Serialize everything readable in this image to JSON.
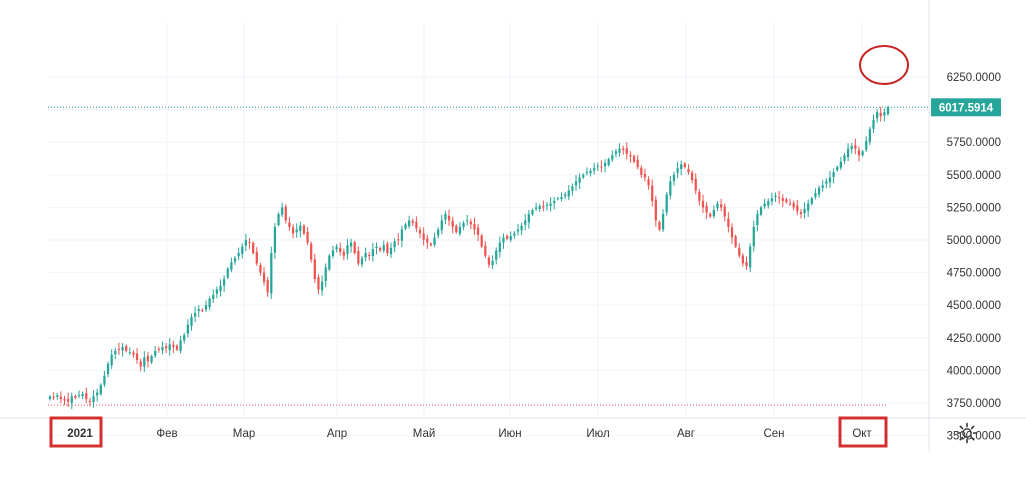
{
  "chart_data": {
    "type": "candlestick",
    "x_labels": [
      "2021",
      "Фев",
      "Мар",
      "Апр",
      "Май",
      "Июн",
      "Июл",
      "Авг",
      "Сен",
      "Окт"
    ],
    "y_ticks": [
      "6250.0000",
      "6000.0000",
      "5750.0000",
      "5500.0000",
      "5250.0000",
      "5000.0000",
      "4750.0000",
      "4500.0000",
      "4250.0000",
      "4000.0000",
      "3750.0000",
      "3500.0000"
    ],
    "ylim": [
      3400,
      6350
    ],
    "last_price_label": "6017.5914",
    "last_price": 6017.5914,
    "start_price_line": 3735,
    "closes": [
      3800,
      3790,
      3810,
      3780,
      3770,
      3760,
      3800,
      3790,
      3810,
      3820,
      3780,
      3760,
      3800,
      3830,
      3890,
      3960,
      4050,
      4120,
      4150,
      4160,
      4180,
      4150,
      4140,
      4120,
      4080,
      4030,
      4100,
      4070,
      4110,
      4150,
      4160,
      4180,
      4170,
      4200,
      4180,
      4160,
      4230,
      4270,
      4350,
      4410,
      4440,
      4470,
      4460,
      4500,
      4550,
      4580,
      4620,
      4650,
      4700,
      4780,
      4830,
      4860,
      4900,
      4950,
      5000,
      4980,
      4900,
      4820,
      4750,
      4680,
      4600,
      4900,
      5100,
      5200,
      5250,
      5150,
      5100,
      5050,
      5080,
      5110,
      5050,
      4980,
      4850,
      4700,
      4620,
      4680,
      4790,
      4880,
      4920,
      4950,
      4910,
      4880,
      4960,
      4980,
      4900,
      4820,
      4860,
      4900,
      4880,
      4930,
      4950,
      4920,
      4960,
      4900,
      4940,
      4990,
      5000,
      5080,
      5120,
      5150,
      5130,
      5090,
      5050,
      5000,
      4980,
      4960,
      5020,
      5080,
      5150,
      5200,
      5150,
      5100,
      5060,
      5100,
      5130,
      5150,
      5120,
      5080,
      5040,
      4950,
      4880,
      4810,
      4840,
      4920,
      4980,
      5020,
      5010,
      5030,
      5050,
      5080,
      5110,
      5150,
      5200,
      5230,
      5250,
      5260,
      5250,
      5270,
      5280,
      5300,
      5320,
      5330,
      5350,
      5380,
      5410,
      5450,
      5480,
      5500,
      5520,
      5530,
      5550,
      5570,
      5560,
      5590,
      5620,
      5650,
      5680,
      5700,
      5690,
      5660,
      5640,
      5600,
      5560,
      5500,
      5480,
      5420,
      5300,
      5150,
      5080,
      5200,
      5350,
      5450,
      5500,
      5550,
      5580,
      5560,
      5520,
      5460,
      5380,
      5300,
      5250,
      5210,
      5180,
      5230,
      5280,
      5250,
      5180,
      5100,
      5020,
      4950,
      4880,
      4820,
      4800,
      4950,
      5100,
      5200,
      5250,
      5280,
      5300,
      5320,
      5340,
      5320,
      5300,
      5290,
      5280,
      5250,
      5220,
      5200,
      5240,
      5280,
      5320,
      5360,
      5400,
      5420,
      5450,
      5480,
      5520,
      5560,
      5600,
      5650,
      5700,
      5720,
      5700,
      5650,
      5680,
      5760,
      5850,
      5920,
      5980,
      5950,
      5980,
      6017.59
    ]
  },
  "toolbar": {
    "year_label": "2021",
    "active_month_label": "Окт",
    "settings_icon": "gear-icon"
  },
  "colors": {
    "up": "#26a69a",
    "down": "#ef5350",
    "grid": "#f0f3fa",
    "price_badge": "#26a69a",
    "highlight_box": "#d32f2f",
    "highlight_circle": "#c62828",
    "axis_text": "#333333"
  }
}
